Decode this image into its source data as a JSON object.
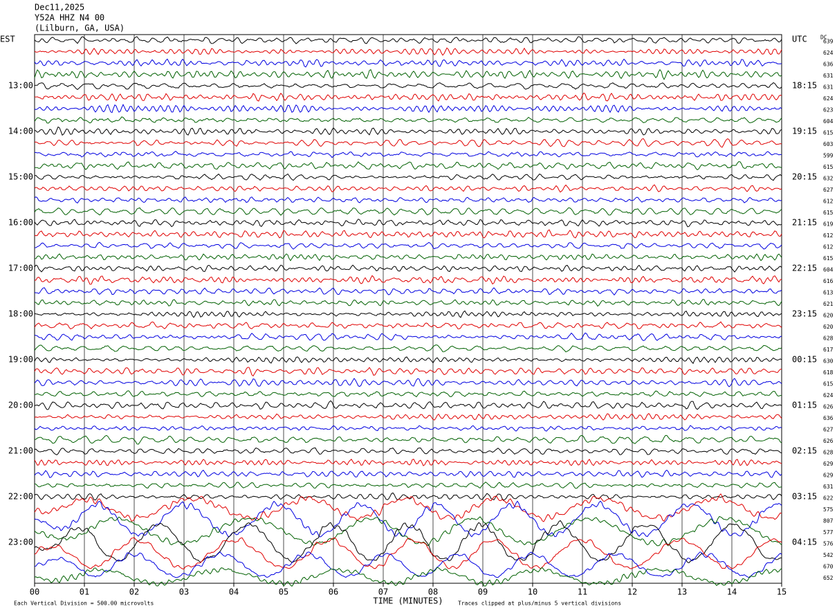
{
  "header": {
    "date": "Dec11,2025",
    "station": "Y52A HHZ N4 00",
    "location": "(Lilburn, GA, USA)"
  },
  "left_zone": "EST",
  "right_zone": "UTC",
  "dc_label": "DC",
  "est_times": [
    "13:00",
    "14:00",
    "15:00",
    "16:00",
    "17:00",
    "18:00",
    "19:00",
    "20:00",
    "21:00",
    "22:00",
    "23:00"
  ],
  "utc_times": [
    "18:15",
    "19:15",
    "20:15",
    "21:15",
    "22:15",
    "23:15",
    "00:15",
    "01:15",
    "02:15",
    "03:15",
    "04:15"
  ],
  "dc_values": [
    "639",
    "624",
    "636",
    "631",
    "631",
    "624",
    "623",
    "604",
    "615",
    "603",
    "599",
    "615",
    "632",
    "627",
    "612",
    "615",
    "619",
    "612",
    "612",
    "615",
    "604",
    "616",
    "613",
    "621",
    "620",
    "620",
    "628",
    "617",
    "630",
    "618",
    "615",
    "624",
    "626",
    "636",
    "627",
    "626",
    "628",
    "629",
    "629",
    "631",
    "622",
    "575",
    "807",
    "577",
    "576",
    "542",
    "670",
    "652"
  ],
  "x_labels": [
    "00",
    "01",
    "02",
    "03",
    "04",
    "05",
    "06",
    "07",
    "08",
    "09",
    "10",
    "11",
    "12",
    "13",
    "14",
    "15"
  ],
  "x_axis_title": "TIME (MINUTES)",
  "footer_scale": "Each Vertical Division =  500.00 microvolts",
  "footer_clip": "Traces clipped at plus/minus 5 vertical divisions"
}
